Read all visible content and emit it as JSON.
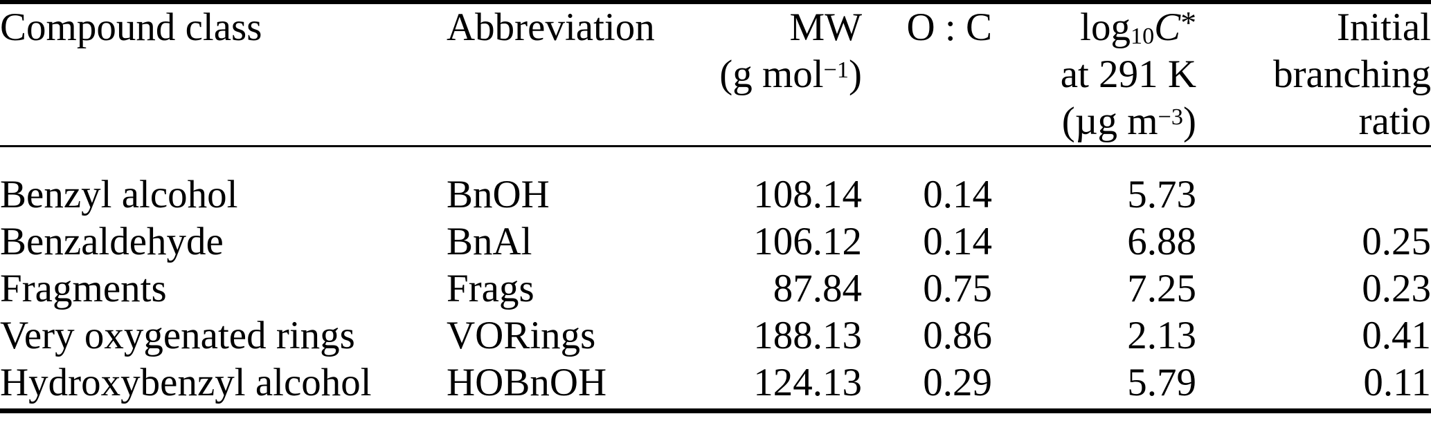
{
  "page": {
    "background": "#ffffff",
    "text_color": "#000000",
    "rule_color": "#000000"
  },
  "table": {
    "columns": [
      {
        "id": "compound_class",
        "align": "left",
        "header_lines": [
          [
            {
              "t": "Compound class"
            }
          ]
        ]
      },
      {
        "id": "abbreviation",
        "align": "left",
        "header_lines": [
          [
            {
              "t": "Abbreviation"
            }
          ]
        ]
      },
      {
        "id": "mw_g_per_mol",
        "align": "right",
        "header_lines": [
          [
            {
              "t": "MW"
            }
          ],
          [
            {
              "t": "(g mol"
            },
            {
              "t": "−1",
              "s": "sup"
            },
            {
              "t": ")"
            }
          ]
        ]
      },
      {
        "id": "o_to_c_ratio",
        "align": "right",
        "header_lines": [
          [
            {
              "t": "O : C"
            }
          ]
        ]
      },
      {
        "id": "log10_c_star_at_291K_ug_per_m3",
        "align": "right",
        "header_lines": [
          [
            {
              "t": "log"
            },
            {
              "t": "10",
              "s": "sub"
            },
            {
              "t": "C",
              "s": "it"
            },
            {
              "t": "*",
              "s": "star"
            }
          ],
          [
            {
              "t": "at 291 K"
            }
          ],
          [
            {
              "t": "(µg m"
            },
            {
              "t": "−3",
              "s": "sup"
            },
            {
              "t": ")"
            }
          ]
        ]
      },
      {
        "id": "initial_branching_ratio",
        "align": "right",
        "header_lines": [
          [
            {
              "t": "Initial"
            }
          ],
          [
            {
              "t": "branching"
            }
          ],
          [
            {
              "t": "ratio"
            }
          ]
        ]
      }
    ],
    "rows": [
      [
        "Benzyl alcohol",
        "BnOH",
        "108.14",
        "0.14",
        "5.73",
        ""
      ],
      [
        "Benzaldehyde",
        "BnAl",
        "106.12",
        "0.14",
        "6.88",
        "0.25"
      ],
      [
        "Fragments",
        "Frags",
        "87.84",
        "0.75",
        "7.25",
        "0.23"
      ],
      [
        "Very oxygenated rings",
        "VORings",
        "188.13",
        "0.86",
        "2.13",
        "0.41"
      ],
      [
        "Hydroxybenzyl alcohol",
        "HOBnOH",
        "124.13",
        "0.29",
        "5.79",
        "0.11"
      ]
    ]
  }
}
